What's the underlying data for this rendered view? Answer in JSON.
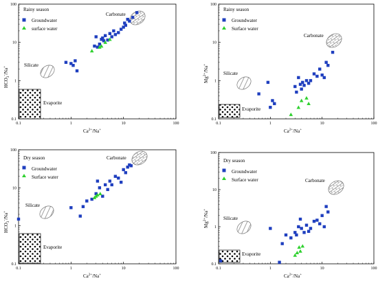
{
  "colors": {
    "groundwater": "#1f3fbf",
    "surface": "#2fd12f",
    "region_fill": "#ffffff",
    "region_stroke": "#666666"
  },
  "chart_data": [
    {
      "type": "scatter",
      "title": "Rainy season",
      "xlabel": "Ca2+/Na+",
      "ylabel": "HCO3-/Na+",
      "x_scale": "log",
      "y_scale": "log",
      "xlim": [
        0.1,
        100
      ],
      "ylim": [
        0.1,
        100
      ],
      "x_ticks": [
        "0.1",
        "1",
        "10",
        "100"
      ],
      "y_ticks": [
        "0.1",
        "1",
        "10",
        "100"
      ],
      "legend": "top-left",
      "series": [
        {
          "name": "Groundwater",
          "marker": "square",
          "points": [
            [
              0.8,
              3.0
            ],
            [
              1.0,
              2.8
            ],
            [
              1.1,
              2.5
            ],
            [
              1.2,
              3.3
            ],
            [
              1.3,
              1.8
            ],
            [
              2.8,
              8.0
            ],
            [
              3.0,
              14.0
            ],
            [
              3.2,
              7.5
            ],
            [
              3.5,
              9.0
            ],
            [
              3.8,
              12.0
            ],
            [
              4.0,
              13.0
            ],
            [
              4.2,
              11.0
            ],
            [
              4.5,
              15.0
            ],
            [
              5.0,
              11.5
            ],
            [
              5.5,
              17.0
            ],
            [
              6.0,
              14.0
            ],
            [
              6.5,
              20.0
            ],
            [
              7.0,
              16.0
            ],
            [
              8.0,
              18.0
            ],
            [
              9.0,
              22.0
            ],
            [
              10.0,
              25.0
            ],
            [
              10.5,
              32.0
            ],
            [
              11.0,
              28.0
            ],
            [
              12.0,
              40.0
            ],
            [
              13.0,
              36.0
            ],
            [
              15.0,
              45.0
            ],
            [
              18.0,
              60.0
            ]
          ]
        },
        {
          "name": "surface water",
          "marker": "triangle",
          "points": [
            [
              2.5,
              6.0
            ],
            [
              3.5,
              7.5
            ],
            [
              4.5,
              10.0
            ],
            [
              5.5,
              12.0
            ],
            [
              3.8,
              8.0
            ]
          ]
        }
      ],
      "annotations": [
        "Carbonate",
        "Silicate",
        "Evaporite"
      ]
    },
    {
      "type": "scatter",
      "title": "Rainy season",
      "xlabel": "Ca2+/Na+",
      "ylabel": "Mg2+/Na+",
      "x_scale": "log",
      "y_scale": "log",
      "xlim": [
        0.1,
        100
      ],
      "ylim": [
        0.1,
        100
      ],
      "x_ticks": [
        "0.1",
        "1",
        "10",
        "100"
      ],
      "y_ticks": [
        "0.1",
        "1",
        "10",
        "100"
      ],
      "legend": "top-left",
      "series": [
        {
          "name": "Groundwater",
          "marker": "square",
          "points": [
            [
              0.6,
              0.45
            ],
            [
              0.9,
              0.9
            ],
            [
              1.0,
              0.2
            ],
            [
              1.1,
              0.3
            ],
            [
              1.2,
              0.25
            ],
            [
              3.0,
              0.7
            ],
            [
              3.2,
              0.5
            ],
            [
              3.5,
              1.2
            ],
            [
              3.8,
              0.8
            ],
            [
              4.0,
              0.6
            ],
            [
              4.2,
              0.9
            ],
            [
              4.5,
              0.75
            ],
            [
              5.0,
              1.0
            ],
            [
              5.5,
              0.85
            ],
            [
              6.0,
              1.0
            ],
            [
              7.0,
              1.5
            ],
            [
              8.0,
              1.3
            ],
            [
              9.0,
              2.0
            ],
            [
              10.0,
              1.4
            ],
            [
              11.0,
              1.2
            ],
            [
              12.0,
              3.0
            ],
            [
              13.0,
              2.5
            ],
            [
              16.0,
              5.5
            ]
          ]
        },
        {
          "name": "Surface water",
          "marker": "triangle",
          "points": [
            [
              2.5,
              0.13
            ],
            [
              3.5,
              0.2
            ],
            [
              4.0,
              0.3
            ],
            [
              5.0,
              0.35
            ],
            [
              5.5,
              0.25
            ]
          ]
        }
      ],
      "annotations": [
        "Carbonate",
        "Silicate",
        "Evaporite"
      ]
    },
    {
      "type": "scatter",
      "title": "Dry season",
      "xlabel": "Ca2+/Na+",
      "ylabel": "HCO3-/Na+",
      "x_scale": "log",
      "y_scale": "log",
      "xlim": [
        0.1,
        100
      ],
      "ylim": [
        0.1,
        100
      ],
      "x_ticks": [
        "0.1",
        "1",
        "10",
        "100"
      ],
      "y_ticks": [
        "0.1",
        "1",
        "10",
        "100"
      ],
      "legend": "top-left",
      "series": [
        {
          "name": "Groundwater",
          "marker": "square",
          "points": [
            [
              0.1,
              1.5
            ],
            [
              1.0,
              3.0
            ],
            [
              1.5,
              1.8
            ],
            [
              1.7,
              3.2
            ],
            [
              2.0,
              4.5
            ],
            [
              2.5,
              5.0
            ],
            [
              3.0,
              7.0
            ],
            [
              3.2,
              15.0
            ],
            [
              3.5,
              10.0
            ],
            [
              4.0,
              6.0
            ],
            [
              4.5,
              12.0
            ],
            [
              5.0,
              9.0
            ],
            [
              5.5,
              15.0
            ],
            [
              6.0,
              12.0
            ],
            [
              7.0,
              20.0
            ],
            [
              8.0,
              18.0
            ],
            [
              9.0,
              14.0
            ],
            [
              10.0,
              30.0
            ],
            [
              11.0,
              25.0
            ],
            [
              12.0,
              35.0
            ],
            [
              13.0,
              40.0
            ],
            [
              14.0,
              38.0
            ]
          ]
        },
        {
          "name": "Surface water",
          "marker": "triangle",
          "points": [
            [
              2.8,
              5.5
            ],
            [
              3.2,
              6.5
            ],
            [
              3.6,
              7.0
            ],
            [
              3.0,
              6.0
            ]
          ]
        }
      ],
      "annotations": [
        "Carbonate",
        "Silicate",
        "Evaporite"
      ]
    },
    {
      "type": "scatter",
      "title": "Dry season",
      "xlabel": "Ca2+/Na+",
      "ylabel": "Mg2+/Na+",
      "x_scale": "log",
      "y_scale": "log",
      "xlim": [
        0.1,
        100
      ],
      "ylim": [
        0.1,
        100
      ],
      "x_ticks": [
        "0.1",
        "1",
        "10",
        "100"
      ],
      "y_ticks": [
        "0.1",
        "1",
        "10",
        "100"
      ],
      "legend": "top-left",
      "series": [
        {
          "name": "Groundwater",
          "marker": "square",
          "points": [
            [
              0.11,
              0.12
            ],
            [
              1.0,
              0.9
            ],
            [
              1.5,
              0.11
            ],
            [
              1.7,
              0.35
            ],
            [
              2.0,
              0.6
            ],
            [
              2.5,
              0.5
            ],
            [
              3.0,
              0.7
            ],
            [
              3.2,
              0.6
            ],
            [
              3.5,
              1.0
            ],
            [
              3.8,
              1.6
            ],
            [
              4.0,
              0.9
            ],
            [
              4.5,
              0.7
            ],
            [
              5.0,
              1.1
            ],
            [
              5.5,
              0.75
            ],
            [
              6.0,
              0.9
            ],
            [
              7.0,
              1.4
            ],
            [
              8.0,
              1.5
            ],
            [
              9.0,
              1.2
            ],
            [
              10.0,
              2.0
            ],
            [
              11.0,
              1.0
            ],
            [
              12.0,
              3.5
            ],
            [
              13.0,
              2.5
            ]
          ]
        },
        {
          "name": "Surface water",
          "marker": "triangle",
          "points": [
            [
              3.0,
              0.17
            ],
            [
              3.3,
              0.2
            ],
            [
              3.6,
              0.28
            ],
            [
              4.2,
              0.3
            ],
            [
              3.8,
              0.22
            ]
          ]
        }
      ],
      "annotations": [
        "Carbonate",
        "Silicate",
        "Evaporite"
      ]
    }
  ],
  "labels": {
    "panel1": {
      "season": "Rainy season",
      "legend1": "Groundwater",
      "legend2": "surface water",
      "ylab_main": "HCO",
      "ylab_sub": "3",
      "ylab_sup": "-",
      "ylab_tail": "/Na",
      "ylab_sup2": "+"
    },
    "panel2": {
      "season": "Rainy season",
      "legend1": "Groundwater",
      "legend2": "Surface water",
      "ylab_main": "Mg",
      "ylab_sup": "2+",
      "ylab_tail": "/Na",
      "ylab_sup2": "+"
    },
    "panel3": {
      "season": "Dry season",
      "legend1": "Groundwater",
      "legend2": "Surface water",
      "ylab_main": "HCO",
      "ylab_sub": "3",
      "ylab_sup": "-",
      "ylab_tail": "/Na",
      "ylab_sup2": "+"
    },
    "panel4": {
      "season": "Dry season",
      "legend1": "Groundwater",
      "legend2": "Surface water",
      "ylab_main": "Mg",
      "ylab_sup": "2+",
      "ylab_tail": "/Na",
      "ylab_sup2": "+"
    },
    "xlab_main": "Ca",
    "xlab_sup": "2+",
    "xlab_tail": "/Na",
    "xlab_sup2": "+",
    "region_carbonate": "Carbonate",
    "region_silicate": "Silicate",
    "region_evaporite": "Evaporite"
  }
}
